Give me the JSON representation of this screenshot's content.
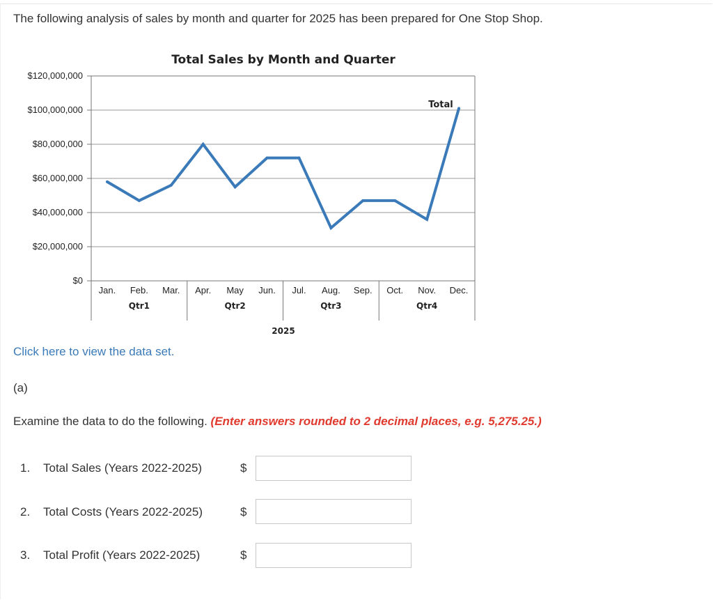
{
  "intro": "The following analysis of sales by month and quarter for 2025 has been prepared for One Stop Shop.",
  "chart_data": {
    "type": "line",
    "title": "Total Sales by Month and Quarter",
    "xlabel": "2025",
    "ylabel": "",
    "categories": [
      "Jan.",
      "Feb.",
      "Mar.",
      "Apr.",
      "May",
      "Jun.",
      "Jul.",
      "Aug.",
      "Sep.",
      "Oct.",
      "Nov.",
      "Dec."
    ],
    "quarters": [
      "Qtr1",
      "Qtr2",
      "Qtr3",
      "Qtr4"
    ],
    "series": [
      {
        "values": [
          58000000,
          47000000,
          56000000,
          80000000,
          55000000,
          72000000,
          72000000,
          31000000,
          47000000,
          47000000,
          36000000,
          101000000
        ]
      }
    ],
    "annotation": "Total",
    "ylim": [
      0,
      120000000
    ],
    "yticks": [
      {
        "value": 0,
        "label": "$0"
      },
      {
        "value": 20000000,
        "label": "$20,000,000"
      },
      {
        "value": 40000000,
        "label": "$40,000,000"
      },
      {
        "value": 60000000,
        "label": "$60,000,000"
      },
      {
        "value": 80000000,
        "label": "$80,000,000"
      },
      {
        "value": 100000000,
        "label": "$100,000,000"
      },
      {
        "value": 120000000,
        "label": "$120,000,000"
      }
    ],
    "grid": true,
    "line_color": "#3a7ab8"
  },
  "link_text": "Click here to view the data set.",
  "part_label": "(a)",
  "instruction": "Examine the data to do the following.",
  "instruction_note": "(Enter answers rounded to 2 decimal places, e.g. 5,275.25.)",
  "questions": [
    {
      "num": "1.",
      "label": "Total Sales (Years 2022-2025)",
      "currency": "$",
      "value": ""
    },
    {
      "num": "2.",
      "label": "Total Costs (Years 2022-2025)",
      "currency": "$",
      "value": ""
    },
    {
      "num": "3.",
      "label": "Total Profit (Years 2022-2025)",
      "currency": "$",
      "value": ""
    }
  ]
}
